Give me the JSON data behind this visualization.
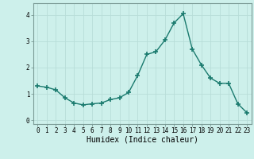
{
  "x": [
    0,
    1,
    2,
    3,
    4,
    5,
    6,
    7,
    8,
    9,
    10,
    11,
    12,
    13,
    14,
    15,
    16,
    17,
    18,
    19,
    20,
    21,
    22,
    23
  ],
  "y": [
    1.3,
    1.25,
    1.15,
    0.85,
    0.65,
    0.58,
    0.62,
    0.65,
    0.78,
    0.85,
    1.05,
    1.7,
    2.5,
    2.6,
    3.05,
    3.7,
    4.05,
    2.7,
    2.1,
    1.6,
    1.4,
    1.4,
    0.62,
    0.28
  ],
  "line_color": "#1a7a6e",
  "marker": "+",
  "marker_size": 4,
  "linewidth": 1.0,
  "xlabel": "Humidex (Indice chaleur)",
  "xlabel_fontsize": 7,
  "bg_color": "#cdf0eb",
  "grid_color": "#b8ddd8",
  "yticks": [
    0,
    1,
    2,
    3,
    4
  ],
  "xticks": [
    0,
    1,
    2,
    3,
    4,
    5,
    6,
    7,
    8,
    9,
    10,
    11,
    12,
    13,
    14,
    15,
    16,
    17,
    18,
    19,
    20,
    21,
    22,
    23
  ],
  "ylim": [
    -0.15,
    4.45
  ],
  "xlim": [
    -0.5,
    23.5
  ],
  "tick_fontsize": 5.5,
  "marker_color": "#1a7a6e"
}
